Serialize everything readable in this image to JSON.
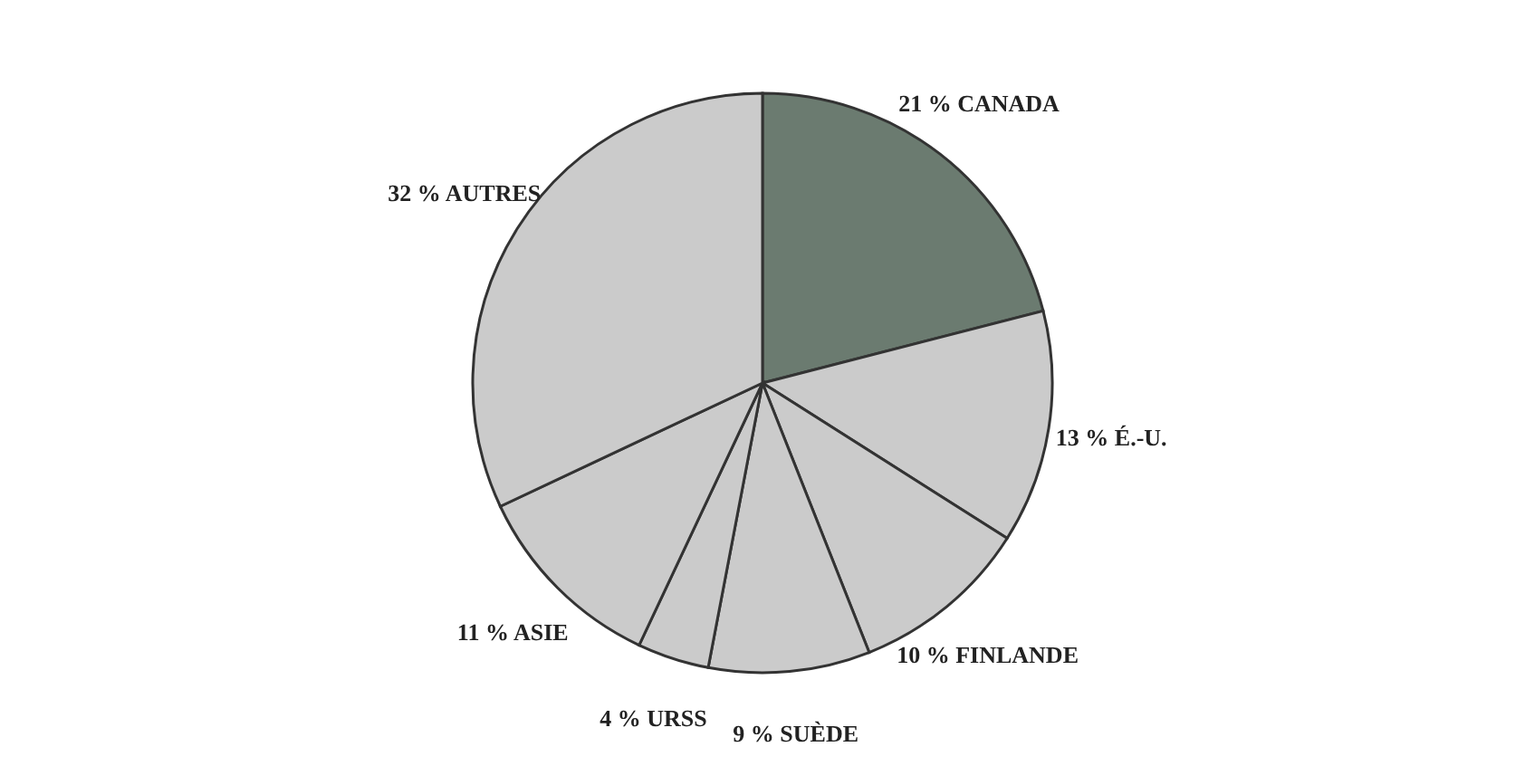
{
  "chart_data": {
    "type": "pie",
    "categories": [
      "CANADA",
      "É.-U.",
      "FINLANDE",
      "SUÈDE",
      "URSS",
      "ASIE",
      "AUTRES"
    ],
    "values": [
      21,
      13,
      10,
      9,
      4,
      11,
      32
    ],
    "value_labels": [
      "21 %",
      "13 %",
      "10 %",
      "9 %",
      "4 %",
      "11 %",
      "32 %"
    ],
    "colors": [
      "#6b7b70",
      "#cbcbcb",
      "#cbcbcb",
      "#cbcbcb",
      "#cbcbcb",
      "#cbcbcb",
      "#cbcbcb"
    ],
    "legend": false
  }
}
